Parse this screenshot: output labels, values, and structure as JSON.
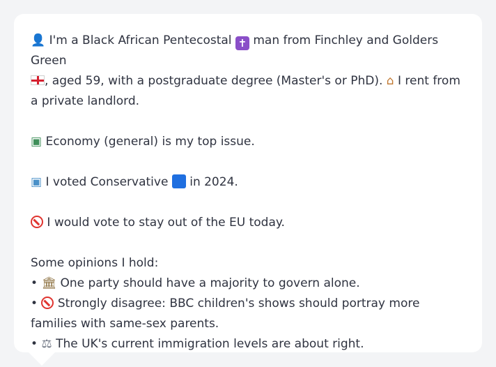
{
  "profile": {
    "line1_a": "I'm a Black African Pentecostal",
    "line1_b": "man from Finchley and Golders Green",
    "line1_c": ", aged 59, with a postgraduate degree (Master's or PhD).",
    "line1_d": "I rent from a private landlord."
  },
  "issue": {
    "text": "Economy (general) is my top issue."
  },
  "vote": {
    "text_a": "I voted Conservative",
    "text_b": "in 2024."
  },
  "eu": {
    "text": "I would vote to stay out of the EU today."
  },
  "opinions": {
    "heading": "Some opinions I hold:",
    "items": [
      {
        "icon": "classical-building-icon",
        "text": "One party should have a majority to govern alone."
      },
      {
        "icon": "no-entry-icon",
        "text": "Strongly disagree: BBC children's shows should portray more families with same-sex parents."
      },
      {
        "icon": "balance-scale-icon",
        "text": "The UK's current immigration levels are about right."
      }
    ]
  },
  "icons": {
    "person": "bust-silhouette-icon",
    "religion": "latin-cross-icon",
    "flag": "england-flag-icon",
    "home": "house-icon",
    "issue": "money-icon",
    "ballot": "ballot-box-icon",
    "party": "blue-square-icon",
    "eu": "no-entry-icon"
  },
  "colors": {
    "background": "#f3f4f6",
    "bubble": "#ffffff",
    "text": "#2f3340",
    "conservative_blue": "#1f6fe0",
    "no_entry_red": "#e0342f"
  }
}
